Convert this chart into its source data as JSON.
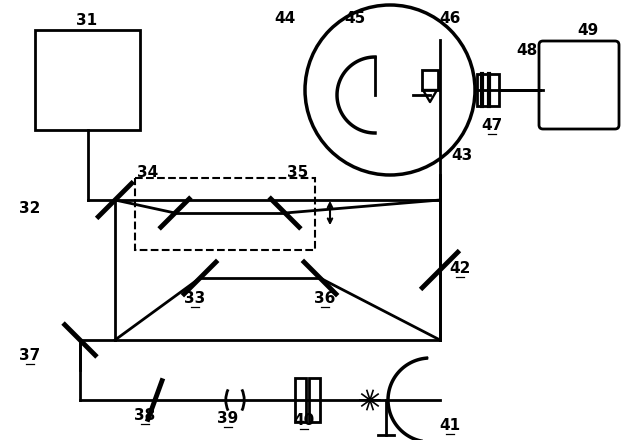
{
  "bg_color": "#ffffff",
  "line_color": "#000000",
  "lw": 2.0,
  "fig_width": 6.23,
  "fig_height": 4.4,
  "dpi": 100
}
